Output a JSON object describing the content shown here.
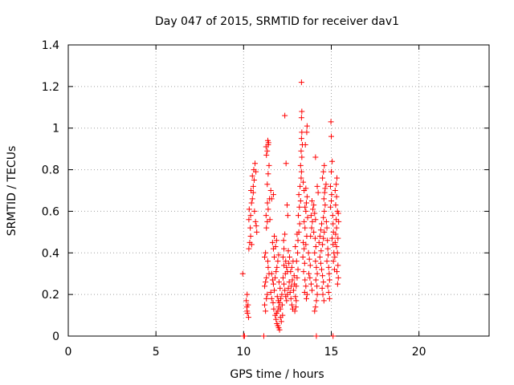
{
  "chart_data": {
    "type": "scatter",
    "title": "Day 047 of 2015, SRMTID for receiver dav1",
    "xlabel": "GPS time / hours",
    "ylabel": "SRMTID / TECUs",
    "xlim": [
      0,
      24
    ],
    "ylim": [
      0,
      1.4
    ],
    "xticks": [
      0,
      5,
      10,
      15,
      20
    ],
    "yticks": [
      0,
      0.2,
      0.4,
      0.6,
      0.8,
      1,
      1.2,
      1.4
    ],
    "ytick_labels": [
      "0",
      "0.2",
      "0.4",
      "0.6",
      "0.8",
      "1",
      "1.2",
      "1.4"
    ],
    "grid": true,
    "marker": "plus",
    "color": "#ff0000",
    "series": [
      {
        "name": "dav1",
        "points": [
          [
            9.95,
            0.3
          ],
          [
            10.15,
            0.17
          ],
          [
            10.18,
            0.14
          ],
          [
            10.2,
            0.12
          ],
          [
            10.22,
            0.11
          ],
          [
            10.25,
            0.15
          ],
          [
            10.28,
            0.09
          ],
          [
            10.2,
            0.2
          ],
          [
            10.3,
            0.42
          ],
          [
            10.35,
            0.45
          ],
          [
            10.4,
            0.48
          ],
          [
            10.3,
            0.56
          ],
          [
            10.32,
            0.61
          ],
          [
            10.45,
            0.64
          ],
          [
            10.5,
            0.66
          ],
          [
            10.42,
            0.7
          ],
          [
            10.55,
            0.72
          ],
          [
            10.6,
            0.75
          ],
          [
            10.5,
            0.77
          ],
          [
            10.58,
            0.8
          ],
          [
            10.65,
            0.83
          ],
          [
            10.7,
            0.79
          ],
          [
            10.62,
            0.6
          ],
          [
            10.68,
            0.55
          ],
          [
            10.72,
            0.53
          ],
          [
            10.75,
            0.5
          ],
          [
            10.4,
            0.58
          ],
          [
            10.38,
            0.52
          ],
          [
            10.46,
            0.44
          ],
          [
            10.55,
            0.69
          ],
          [
            10.0,
            0.0
          ],
          [
            10.05,
            0.0
          ],
          [
            11.15,
            0.0
          ],
          [
            14.15,
            0.0
          ],
          [
            15.1,
            0.0
          ],
          [
            11.2,
            0.15
          ],
          [
            11.25,
            0.12
          ],
          [
            11.3,
            0.18
          ],
          [
            11.35,
            0.2
          ],
          [
            11.2,
            0.24
          ],
          [
            11.25,
            0.26
          ],
          [
            11.3,
            0.28
          ],
          [
            11.2,
            0.38
          ],
          [
            11.25,
            0.4
          ],
          [
            11.4,
            0.33
          ],
          [
            11.45,
            0.3
          ],
          [
            11.38,
            0.36
          ],
          [
            11.3,
            0.52
          ],
          [
            11.35,
            0.55
          ],
          [
            11.28,
            0.58
          ],
          [
            11.4,
            0.61
          ],
          [
            11.36,
            0.64
          ],
          [
            11.48,
            0.66
          ],
          [
            11.35,
            0.73
          ],
          [
            11.4,
            0.78
          ],
          [
            11.45,
            0.82
          ],
          [
            11.3,
            0.87
          ],
          [
            11.35,
            0.89
          ],
          [
            11.28,
            0.91
          ],
          [
            11.4,
            0.92
          ],
          [
            11.42,
            0.93
          ],
          [
            11.38,
            0.94
          ],
          [
            11.55,
            0.7
          ],
          [
            11.6,
            0.66
          ],
          [
            11.7,
            0.68
          ],
          [
            11.5,
            0.56
          ],
          [
            11.65,
            0.45
          ],
          [
            11.7,
            0.42
          ],
          [
            11.75,
            0.38
          ],
          [
            11.6,
            0.3
          ],
          [
            11.65,
            0.27
          ],
          [
            11.7,
            0.25
          ],
          [
            11.75,
            0.22
          ],
          [
            11.55,
            0.21
          ],
          [
            11.6,
            0.18
          ],
          [
            11.68,
            0.16
          ],
          [
            11.72,
            0.13
          ],
          [
            11.8,
            0.1
          ],
          [
            11.85,
            0.08
          ],
          [
            11.9,
            0.06
          ],
          [
            11.95,
            0.05
          ],
          [
            12.0,
            0.04
          ],
          [
            12.05,
            0.03
          ],
          [
            11.88,
            0.11
          ],
          [
            11.95,
            0.12
          ],
          [
            12.0,
            0.14
          ],
          [
            12.05,
            0.16
          ],
          [
            12.1,
            0.09
          ],
          [
            12.15,
            0.07
          ],
          [
            12.12,
            0.18
          ],
          [
            12.18,
            0.2
          ],
          [
            11.92,
            0.19
          ],
          [
            11.98,
            0.17
          ],
          [
            11.8,
            0.28
          ],
          [
            11.85,
            0.31
          ],
          [
            11.9,
            0.33
          ],
          [
            11.95,
            0.36
          ],
          [
            12.0,
            0.39
          ],
          [
            11.82,
            0.43
          ],
          [
            11.88,
            0.46
          ],
          [
            11.75,
            0.48
          ],
          [
            12.08,
            0.23
          ],
          [
            12.02,
            0.26
          ],
          [
            12.1,
            0.13
          ],
          [
            12.22,
            0.1
          ],
          [
            12.2,
            0.15
          ],
          [
            12.25,
            0.28
          ],
          [
            12.3,
            0.34
          ],
          [
            12.25,
            0.38
          ],
          [
            12.3,
            0.42
          ],
          [
            12.28,
            0.46
          ],
          [
            12.35,
            0.49
          ],
          [
            12.4,
            0.36
          ],
          [
            12.45,
            0.33
          ],
          [
            12.38,
            0.3
          ],
          [
            12.3,
            0.25
          ],
          [
            12.35,
            0.22
          ],
          [
            12.4,
            0.19
          ],
          [
            12.45,
            0.17
          ],
          [
            12.5,
            0.2
          ],
          [
            12.55,
            0.23
          ],
          [
            12.6,
            0.26
          ],
          [
            12.5,
            0.31
          ],
          [
            12.58,
            0.35
          ],
          [
            12.62,
            0.38
          ],
          [
            12.55,
            0.41
          ],
          [
            12.35,
            1.06
          ],
          [
            12.42,
            0.83
          ],
          [
            12.48,
            0.63
          ],
          [
            12.52,
            0.58
          ],
          [
            12.65,
            0.21
          ],
          [
            12.7,
            0.18
          ],
          [
            12.75,
            0.15
          ],
          [
            12.8,
            0.13
          ],
          [
            12.72,
            0.24
          ],
          [
            12.78,
            0.27
          ],
          [
            12.85,
            0.22
          ],
          [
            12.9,
            0.25
          ],
          [
            12.68,
            0.31
          ],
          [
            12.75,
            0.33
          ],
          [
            12.82,
            0.36
          ],
          [
            12.88,
            0.29
          ],
          [
            12.95,
            0.19
          ],
          [
            13.0,
            0.17
          ],
          [
            12.92,
            0.12
          ],
          [
            12.98,
            0.14
          ],
          [
            13.0,
            0.24
          ],
          [
            13.05,
            0.28
          ],
          [
            13.1,
            0.32
          ],
          [
            13.02,
            0.36
          ],
          [
            13.08,
            0.4
          ],
          [
            12.95,
            0.43
          ],
          [
            13.1,
            0.46
          ],
          [
            13.05,
            0.49
          ],
          [
            13.15,
            0.5
          ],
          [
            13.2,
            0.54
          ],
          [
            13.12,
            0.58
          ],
          [
            13.18,
            0.62
          ],
          [
            13.25,
            0.65
          ],
          [
            13.15,
            0.68
          ],
          [
            13.22,
            0.72
          ],
          [
            13.28,
            0.76
          ],
          [
            13.3,
            0.79
          ],
          [
            13.25,
            0.82
          ],
          [
            13.32,
            0.86
          ],
          [
            13.28,
            0.89
          ],
          [
            13.35,
            0.92
          ],
          [
            13.3,
            0.95
          ],
          [
            13.32,
            0.98
          ],
          [
            13.3,
            1.05
          ],
          [
            13.32,
            1.08
          ],
          [
            13.3,
            1.22
          ],
          [
            13.4,
            0.74
          ],
          [
            13.45,
            0.7
          ],
          [
            13.5,
            0.62
          ],
          [
            13.55,
            0.6
          ],
          [
            13.45,
            0.55
          ],
          [
            13.5,
            0.52
          ],
          [
            13.4,
            0.45
          ],
          [
            13.45,
            0.42
          ],
          [
            13.38,
            0.38
          ],
          [
            13.48,
            0.35
          ],
          [
            13.42,
            0.31
          ],
          [
            13.5,
            0.27
          ],
          [
            13.55,
            0.24
          ],
          [
            13.48,
            0.21
          ],
          [
            13.58,
            0.18
          ],
          [
            13.62,
            0.2
          ],
          [
            13.55,
            0.44
          ],
          [
            13.6,
            0.48
          ],
          [
            13.65,
            0.57
          ],
          [
            13.58,
            0.64
          ],
          [
            13.62,
            0.67
          ],
          [
            13.55,
            0.71
          ],
          [
            13.6,
            0.98
          ],
          [
            13.62,
            1.01
          ],
          [
            13.52,
            0.92
          ],
          [
            13.7,
            0.4
          ],
          [
            13.75,
            0.37
          ],
          [
            13.8,
            0.34
          ],
          [
            13.72,
            0.3
          ],
          [
            13.78,
            0.28
          ],
          [
            13.85,
            0.25
          ],
          [
            13.9,
            0.22
          ],
          [
            13.82,
            0.48
          ],
          [
            13.88,
            0.52
          ],
          [
            13.92,
            0.55
          ],
          [
            13.85,
            0.58
          ],
          [
            13.95,
            0.61
          ],
          [
            13.9,
            0.65
          ],
          [
            14.0,
            0.63
          ],
          [
            14.05,
            0.59
          ],
          [
            14.1,
            0.56
          ],
          [
            14.0,
            0.5
          ],
          [
            14.08,
            0.47
          ],
          [
            14.12,
            0.43
          ],
          [
            14.05,
            0.4
          ],
          [
            14.1,
            0.36
          ],
          [
            14.15,
            0.33
          ],
          [
            14.2,
            0.3
          ],
          [
            14.12,
            0.27
          ],
          [
            14.18,
            0.24
          ],
          [
            14.2,
            0.2
          ],
          [
            14.15,
            0.17
          ],
          [
            14.1,
            0.14
          ],
          [
            14.05,
            0.12
          ],
          [
            14.1,
            0.86
          ],
          [
            14.2,
            0.72
          ],
          [
            14.25,
            0.69
          ],
          [
            14.3,
            0.45
          ],
          [
            14.35,
            0.48
          ],
          [
            14.4,
            0.51
          ],
          [
            14.45,
            0.54
          ],
          [
            14.35,
            0.38
          ],
          [
            14.4,
            0.35
          ],
          [
            14.45,
            0.32
          ],
          [
            14.5,
            0.29
          ],
          [
            14.55,
            0.26
          ],
          [
            14.48,
            0.23
          ],
          [
            14.52,
            0.2
          ],
          [
            14.58,
            0.17
          ],
          [
            14.42,
            0.41
          ],
          [
            14.5,
            0.44
          ],
          [
            14.55,
            0.47
          ],
          [
            14.6,
            0.5
          ],
          [
            14.55,
            0.57
          ],
          [
            14.6,
            0.6
          ],
          [
            14.65,
            0.63
          ],
          [
            14.58,
            0.66
          ],
          [
            14.62,
            0.69
          ],
          [
            14.5,
            0.76
          ],
          [
            14.55,
            0.79
          ],
          [
            14.6,
            0.82
          ],
          [
            14.65,
            0.71
          ],
          [
            14.7,
            0.73
          ],
          [
            14.72,
            0.55
          ],
          [
            14.75,
            0.52
          ],
          [
            14.78,
            0.46
          ],
          [
            14.8,
            0.42
          ],
          [
            14.82,
            0.39
          ],
          [
            14.75,
            0.36
          ],
          [
            14.85,
            0.33
          ],
          [
            14.88,
            0.3
          ],
          [
            14.9,
            0.27
          ],
          [
            14.8,
            0.24
          ],
          [
            14.85,
            0.21
          ],
          [
            14.9,
            0.18
          ],
          [
            14.95,
            0.62
          ],
          [
            15.0,
            0.65
          ],
          [
            15.02,
            0.68
          ],
          [
            14.95,
            0.72
          ],
          [
            15.0,
            0.79
          ],
          [
            15.05,
            0.84
          ],
          [
            14.98,
            1.03
          ],
          [
            15.0,
            0.96
          ],
          [
            15.08,
            0.58
          ],
          [
            15.1,
            0.54
          ],
          [
            15.12,
            0.5
          ],
          [
            15.05,
            0.47
          ],
          [
            15.1,
            0.44
          ],
          [
            15.15,
            0.4
          ],
          [
            15.12,
            0.36
          ],
          [
            15.18,
            0.32
          ],
          [
            15.2,
            0.38
          ],
          [
            15.22,
            0.45
          ],
          [
            15.25,
            0.49
          ],
          [
            15.3,
            0.52
          ],
          [
            15.28,
            0.56
          ],
          [
            15.35,
            0.6
          ],
          [
            15.3,
            0.43
          ],
          [
            15.35,
            0.4
          ],
          [
            15.38,
            0.34
          ],
          [
            15.32,
            0.31
          ],
          [
            15.25,
            0.63
          ],
          [
            15.3,
            0.67
          ],
          [
            15.22,
            0.7
          ],
          [
            15.28,
            0.73
          ],
          [
            15.32,
            0.76
          ],
          [
            15.4,
            0.59
          ],
          [
            15.42,
            0.55
          ],
          [
            15.38,
            0.47
          ],
          [
            15.36,
            0.25
          ],
          [
            15.4,
            0.28
          ]
        ]
      }
    ]
  }
}
